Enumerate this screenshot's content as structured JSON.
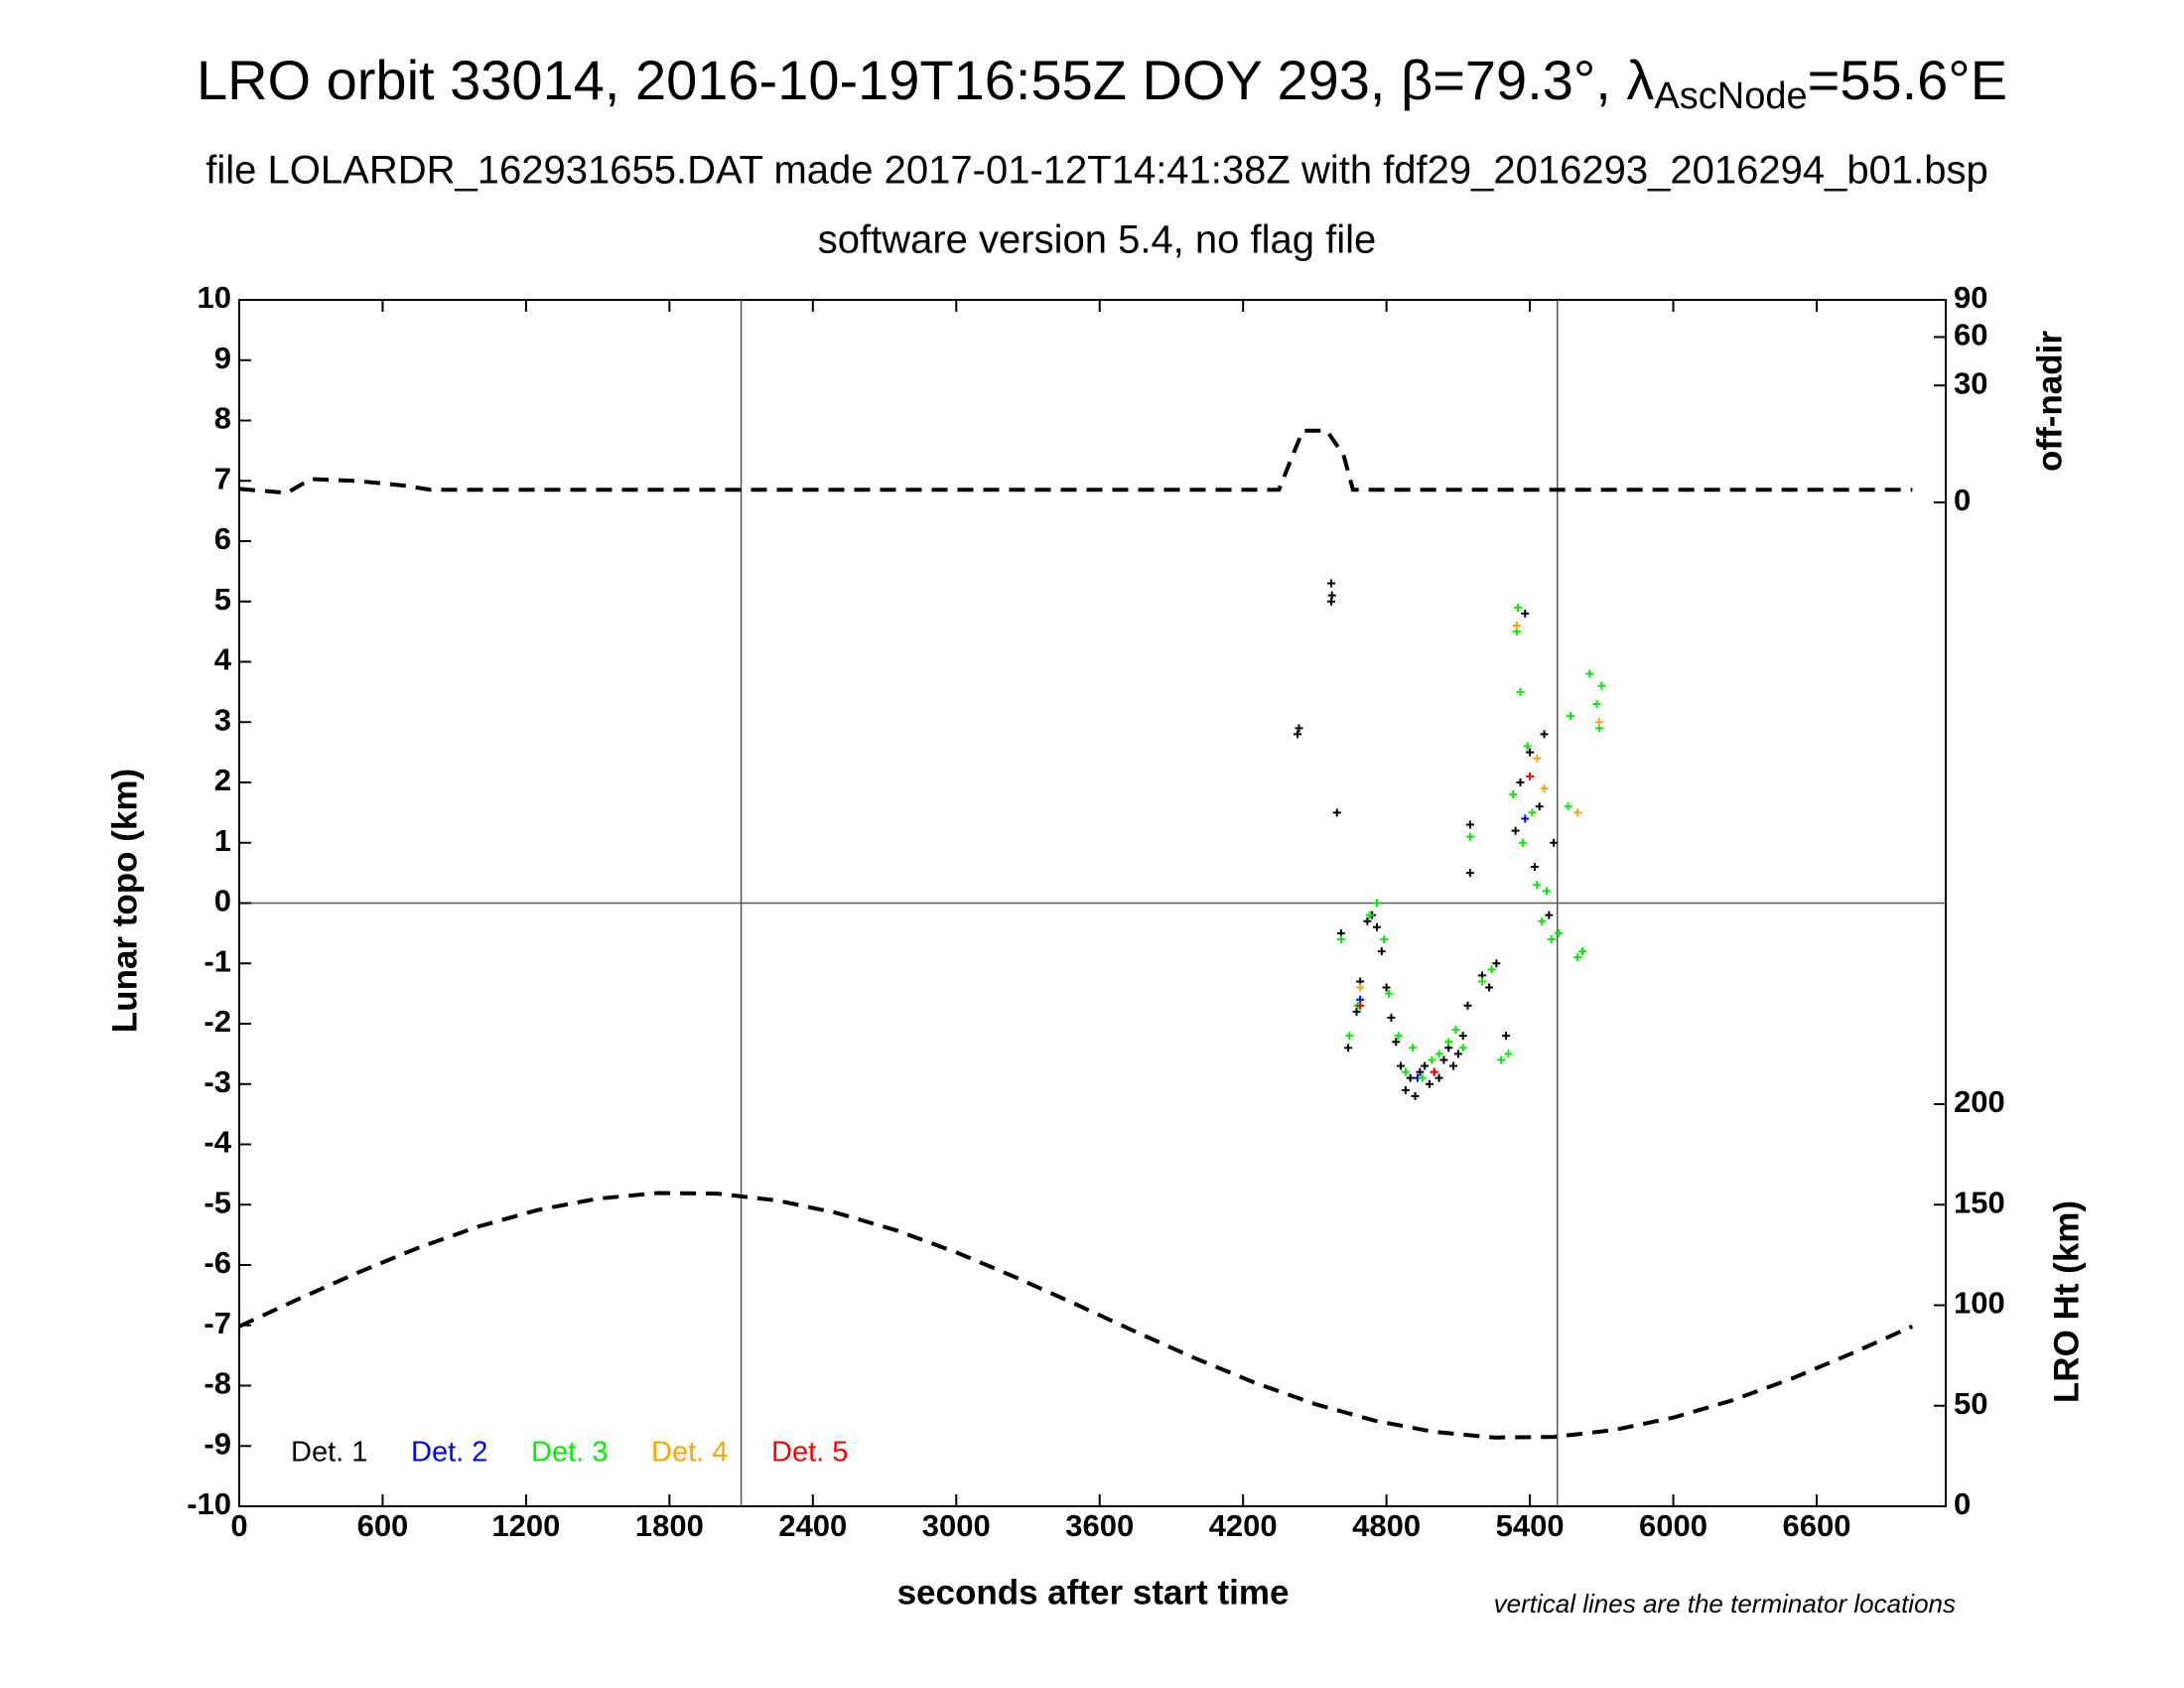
{
  "chart_data": {
    "type": "scatter",
    "title": [
      "LRO orbit 33014, 2016-10-19T16:55Z DOY 293, β=79.3°, λ",
      "AscNode",
      "=55.6°E"
    ],
    "subtitles": [
      "file LOLARDR_162931655.DAT made 2017-01-12T14:41:38Z with fdf29_2016293_2016294_b01.bsp",
      "software version 5.4, no flag file"
    ],
    "x_label": "seconds after start time",
    "y_label": "Lunar topo (km)",
    "y3_label": "off-nadir",
    "y2_label": "LRO Ht (km)",
    "annotation": "vertical lines are the terminator locations",
    "xlim": [
      0,
      7140
    ],
    "xticks": [
      0,
      600,
      1200,
      1800,
      2400,
      3000,
      3600,
      4200,
      4800,
      5400,
      6000,
      6600
    ],
    "ylim": [
      -10,
      10
    ],
    "yticks": [
      -10,
      -9,
      -8,
      -7,
      -6,
      -5,
      -4,
      -3,
      -2,
      -1,
      0,
      1,
      2,
      3,
      4,
      5,
      6,
      7,
      8,
      9,
      10
    ],
    "y2lim": [
      0,
      600
    ],
    "y2ticks": [
      0,
      50,
      100,
      150,
      200
    ],
    "y3lim": [
      0,
      90
    ],
    "y3ticks": [
      0,
      30,
      60,
      90
    ],
    "y3scale": "sqrt",
    "vlines": [
      2100,
      5515
    ],
    "hlines": [
      0
    ],
    "legend": "lower left",
    "series": [
      {
        "name": "Det. 1",
        "color": "#000000",
        "x": [
          4428,
          4434,
          4569,
          4569,
          4572,
          4593,
          4610,
          4640,
          4675,
          4690,
          4720,
          4740,
          4760,
          4780,
          4800,
          4820,
          4840,
          4860,
          4880,
          4900,
          4920,
          4940,
          4960,
          4980,
          5000,
          5020,
          5040,
          5060,
          5080,
          5100,
          5120,
          5140,
          5150,
          5150,
          5200,
          5230,
          5260,
          5300,
          5340,
          5360,
          5380,
          5400,
          5420,
          5440,
          5460,
          5480,
          5500
        ],
        "values": [
          2.8,
          2.9,
          5.3,
          5.0,
          5.1,
          1.5,
          -0.5,
          -2.4,
          -1.8,
          -1.3,
          -0.3,
          -0.2,
          -0.4,
          -0.8,
          -1.4,
          -1.9,
          -2.3,
          -2.7,
          -3.1,
          -2.9,
          -3.2,
          -2.8,
          -2.7,
          -3.0,
          -2.8,
          -2.9,
          -2.6,
          -2.4,
          -2.7,
          -2.5,
          -2.2,
          -1.7,
          1.3,
          0.5,
          -1.2,
          -1.4,
          -1.0,
          -2.2,
          1.2,
          2.0,
          4.8,
          2.5,
          0.6,
          1.6,
          2.8,
          -0.2,
          1.0
        ]
      },
      {
        "name": "Det. 2",
        "color": "#0000ff",
        "x": [
          4690,
          4930,
          5380
        ],
        "values": [
          -1.6,
          -2.9,
          1.4
        ]
      },
      {
        "name": "Det. 3",
        "color": "#00ee00",
        "x": [
          4610,
          4645,
          4680,
          4730,
          4760,
          4790,
          4810,
          4850,
          4880,
          4910,
          4950,
          4990,
          5020,
          5060,
          5090,
          5120,
          5150,
          5200,
          5240,
          5280,
          5310,
          5330,
          5345,
          5350,
          5360,
          5370,
          5390,
          5410,
          5430,
          5450,
          5470,
          5490,
          5520,
          5560,
          5570,
          5600,
          5620,
          5650,
          5680,
          5690,
          5700
        ],
        "values": [
          -0.6,
          -2.2,
          -1.7,
          -0.2,
          0.0,
          -0.6,
          -1.5,
          -2.2,
          -2.8,
          -2.4,
          -2.9,
          -2.6,
          -2.5,
          -2.3,
          -2.1,
          -2.4,
          1.1,
          -1.3,
          -1.1,
          -2.6,
          -2.5,
          1.8,
          4.5,
          4.9,
          3.5,
          1.0,
          2.6,
          1.5,
          0.3,
          -0.3,
          0.2,
          -0.6,
          -0.5,
          1.6,
          3.1,
          -0.9,
          -0.8,
          3.8,
          3.3,
          2.9,
          3.6
        ]
      },
      {
        "name": "Det. 4",
        "color": "#ffa500",
        "x": [
          4690,
          5345,
          5430,
          5460,
          5600,
          5690
        ],
        "values": [
          -1.4,
          4.6,
          2.4,
          1.9,
          1.5,
          3.0
        ]
      },
      {
        "name": "Det. 5",
        "color": "#ff0000",
        "x": [
          4690,
          5000,
          5400
        ],
        "values": [
          -1.7,
          -2.8,
          2.1
        ]
      },
      {
        "axis": "y3",
        "color": "#000000",
        "dashed": true,
        "x": [
          0,
          200,
          300,
          500,
          700,
          800,
          4350,
          4400,
          4450,
          4550,
          4620,
          4660,
          7000
        ],
        "values": [
          0.4,
          0.2,
          1.2,
          1.0,
          0.6,
          0.35,
          0.35,
          4,
          11.3,
          11.3,
          5,
          0.35,
          0.35
        ]
      },
      {
        "axis": "y2",
        "color": "#000000",
        "dashed": true,
        "x": [
          0,
          250,
          500,
          750,
          1000,
          1250,
          1500,
          1750,
          2000,
          2250,
          2500,
          2750,
          3000,
          3250,
          3500,
          3750,
          4000,
          4250,
          4500,
          4750,
          5000,
          5250,
          5500,
          5750,
          6000,
          6250,
          6500,
          6750,
          7000
        ],
        "values": [
          89.5,
          103.2,
          116.4,
          128.6,
          139.1,
          147.4,
          153.0,
          155.8,
          155.5,
          152.1,
          145.9,
          137.2,
          126.3,
          113.8,
          100.5,
          86.8,
          73.6,
          61.4,
          50.9,
          42.6,
          37.0,
          34.2,
          34.5,
          37.9,
          44.1,
          52.8,
          63.7,
          76.2,
          89.5
        ]
      }
    ]
  }
}
